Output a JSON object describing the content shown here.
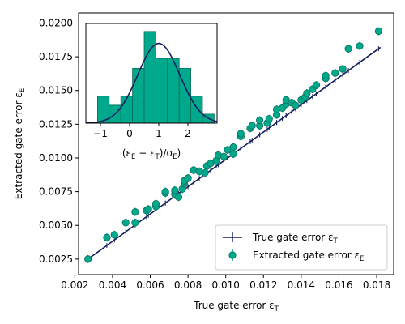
{
  "colors": {
    "true_line": "#141e5f",
    "extracted": "#00a88c",
    "extracted_edge": "#0a6e5a",
    "axis": "#000000"
  },
  "chart_data": [
    {
      "type": "scatter",
      "xlabel": "True gate error ε",
      "xlabel_sub": "T",
      "ylabel": "Extracted gate error ε",
      "ylabel_sub": "E",
      "xlim": [
        0.0022,
        0.0189
      ],
      "ylim": [
        0.00135,
        0.02075
      ],
      "xticks": [
        0.002,
        0.004,
        0.006,
        0.008,
        0.01,
        0.012,
        0.014,
        0.016,
        0.018
      ],
      "xtick_labels": [
        "0.002",
        "0.004",
        "0.006",
        "0.008",
        "0.010",
        "0.012",
        "0.014",
        "0.016",
        "0.018"
      ],
      "yticks": [
        0.0025,
        0.005,
        0.0075,
        0.01,
        0.0125,
        0.015,
        0.0175,
        0.02
      ],
      "ytick_labels": [
        "0.0025",
        "0.0050",
        "0.0075",
        "0.0100",
        "0.0125",
        "0.0150",
        "0.0175",
        "0.0200"
      ],
      "legend_position": "lower-right",
      "series": [
        {
          "name": "True gate error ε",
          "name_sub": "T",
          "kind": "line",
          "x": [
            0.0027,
            0.0182
          ],
          "y": [
            0.0025,
            0.0182
          ]
        },
        {
          "name": "Extracted gate error ε",
          "name_sub": "E",
          "kind": "errorbar-points",
          "yerr": 0.0003,
          "points": [
            [
              0.0027,
              0.0025
            ],
            [
              0.0037,
              0.0041
            ],
            [
              0.0041,
              0.0043
            ],
            [
              0.0047,
              0.0052
            ],
            [
              0.0052,
              0.0052
            ],
            [
              0.0052,
              0.006
            ],
            [
              0.0058,
              0.0061
            ],
            [
              0.0059,
              0.0062
            ],
            [
              0.0063,
              0.0064
            ],
            [
              0.0063,
              0.0066
            ],
            [
              0.0068,
              0.0074
            ],
            [
              0.0068,
              0.0075
            ],
            [
              0.0073,
              0.0073
            ],
            [
              0.0073,
              0.0076
            ],
            [
              0.0075,
              0.0071
            ],
            [
              0.0077,
              0.0077
            ],
            [
              0.0078,
              0.0081
            ],
            [
              0.0078,
              0.0083
            ],
            [
              0.008,
              0.0085
            ],
            [
              0.0083,
              0.0091
            ],
            [
              0.0086,
              0.009
            ],
            [
              0.0089,
              0.0089
            ],
            [
              0.009,
              0.0094
            ],
            [
              0.0092,
              0.0096
            ],
            [
              0.0095,
              0.0098
            ],
            [
              0.0096,
              0.0102
            ],
            [
              0.0099,
              0.0101
            ],
            [
              0.0101,
              0.0106
            ],
            [
              0.0104,
              0.0103
            ],
            [
              0.0104,
              0.0108
            ],
            [
              0.0108,
              0.0116
            ],
            [
              0.0108,
              0.0118
            ],
            [
              0.0113,
              0.0122
            ],
            [
              0.0114,
              0.0124
            ],
            [
              0.0118,
              0.0124
            ],
            [
              0.0118,
              0.0128
            ],
            [
              0.0122,
              0.0126
            ],
            [
              0.0123,
              0.0129
            ],
            [
              0.0127,
              0.0132
            ],
            [
              0.0127,
              0.0136
            ],
            [
              0.013,
              0.0137
            ],
            [
              0.0132,
              0.014
            ],
            [
              0.0132,
              0.0143
            ],
            [
              0.0135,
              0.0141
            ],
            [
              0.0137,
              0.0139
            ],
            [
              0.014,
              0.0143
            ],
            [
              0.0142,
              0.0145
            ],
            [
              0.0143,
              0.0148
            ],
            [
              0.0146,
              0.0151
            ],
            [
              0.0148,
              0.0154
            ],
            [
              0.0153,
              0.0159
            ],
            [
              0.0153,
              0.0161
            ],
            [
              0.0158,
              0.0163
            ],
            [
              0.0162,
              0.0166
            ],
            [
              0.0165,
              0.0181
            ],
            [
              0.0171,
              0.0183
            ],
            [
              0.0181,
              0.0194
            ]
          ]
        }
      ]
    },
    {
      "type": "histogram",
      "inset": true,
      "xlabel": "(ε",
      "xlabel_full": [
        "(ε",
        "E",
        " − ε",
        "T",
        ")/σ",
        "E"
      ],
      "xlim": [
        -1.5,
        3.0
      ],
      "ylim": [
        0,
        1
      ],
      "xticks": [
        -1,
        0,
        1,
        2
      ],
      "xtick_labels": [
        "−1",
        "0",
        "1",
        "2"
      ],
      "bins": [
        {
          "x0": -1.1,
          "x1": -0.7,
          "h": 0.27
        },
        {
          "x0": -0.7,
          "x1": -0.3,
          "h": 0.18
        },
        {
          "x0": -0.3,
          "x1": 0.1,
          "h": 0.27
        },
        {
          "x0": 0.1,
          "x1": 0.5,
          "h": 0.55
        },
        {
          "x0": 0.5,
          "x1": 0.9,
          "h": 0.92
        },
        {
          "x0": 0.9,
          "x1": 1.3,
          "h": 0.65
        },
        {
          "x0": 1.3,
          "x1": 1.7,
          "h": 0.65
        },
        {
          "x0": 1.7,
          "x1": 2.1,
          "h": 0.55
        },
        {
          "x0": 2.1,
          "x1": 2.5,
          "h": 0.27
        },
        {
          "x0": 2.5,
          "x1": 2.9,
          "h": 0.09
        }
      ],
      "fit_curve": {
        "type": "gaussian",
        "mean": 1.0,
        "sigma": 0.72,
        "amplitude": 0.8
      }
    }
  ]
}
